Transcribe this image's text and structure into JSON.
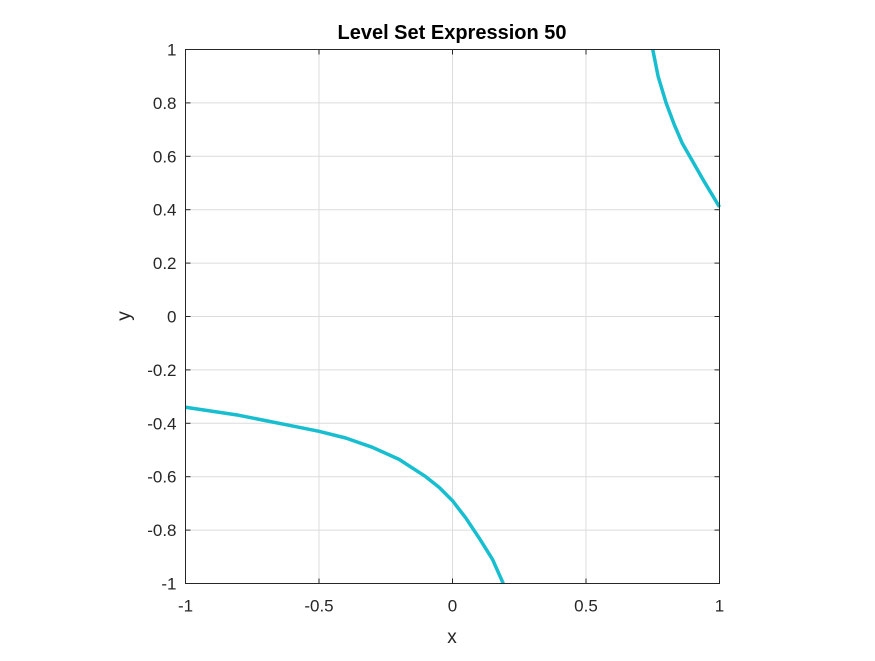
{
  "chart_data": {
    "type": "line",
    "title": "Level Set Expression 50",
    "xlabel": "x",
    "ylabel": "y",
    "xlim": [
      -1,
      1
    ],
    "ylim": [
      -1,
      1
    ],
    "xticks": [
      -1,
      -0.5,
      0,
      0.5,
      1
    ],
    "xtick_labels": [
      "-1",
      "-0.5",
      "0",
      "0.5",
      "1"
    ],
    "yticks": [
      -1,
      -0.8,
      -0.6,
      -0.4,
      -0.2,
      0,
      0.2,
      0.4,
      0.6,
      0.8,
      1
    ],
    "ytick_labels": [
      "-1",
      "-0.8",
      "-0.6",
      "-0.4",
      "-0.2",
      "0",
      "0.2",
      "0.4",
      "0.6",
      "0.8",
      "1"
    ],
    "grid": true,
    "line_color": "#17becf",
    "series": [
      {
        "points": [
          [
            -1.0,
            -0.34
          ],
          [
            -0.9,
            -0.355
          ],
          [
            -0.8,
            -0.37
          ],
          [
            -0.7,
            -0.39
          ],
          [
            -0.6,
            -0.41
          ],
          [
            -0.5,
            -0.43
          ],
          [
            -0.4,
            -0.455
          ],
          [
            -0.3,
            -0.49
          ],
          [
            -0.2,
            -0.535
          ],
          [
            -0.1,
            -0.6
          ],
          [
            -0.05,
            -0.64
          ],
          [
            0.0,
            -0.69
          ],
          [
            0.05,
            -0.755
          ],
          [
            0.1,
            -0.83
          ],
          [
            0.15,
            -0.91
          ],
          [
            0.19,
            -1.0
          ]
        ]
      },
      {
        "points": [
          [
            0.75,
            1.0
          ],
          [
            0.77,
            0.9
          ],
          [
            0.8,
            0.8
          ],
          [
            0.83,
            0.72
          ],
          [
            0.86,
            0.65
          ],
          [
            0.9,
            0.58
          ],
          [
            0.94,
            0.51
          ],
          [
            0.97,
            0.46
          ],
          [
            1.0,
            0.41
          ]
        ]
      }
    ]
  }
}
